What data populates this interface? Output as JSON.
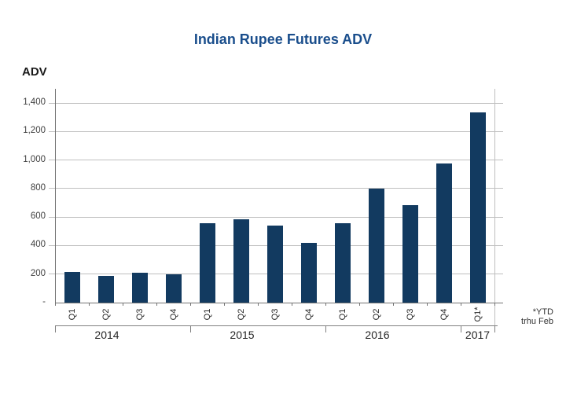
{
  "page": {
    "title": "Indian Rupee Futures ADV",
    "axis_title": "ADV",
    "footnote_line1": "*YTD",
    "footnote_line2": "trhu Feb"
  },
  "colors": {
    "bar": "#123a60",
    "title_text": "#1a4e8c",
    "gridline": "#bfbfbf",
    "axis_dark": "#737373",
    "axis_mid": "#808080",
    "label_text": "#262626"
  },
  "chart_data": {
    "type": "bar",
    "title": "Indian Rupee Futures ADV",
    "ylabel": "ADV",
    "xlabel": "",
    "ylim": [
      0,
      1500
    ],
    "yticks": [
      0,
      200,
      400,
      600,
      800,
      1000,
      1200,
      1400
    ],
    "ytick_labels": [
      "-",
      "200",
      "400",
      "600",
      "800",
      "1,000",
      "1,200",
      "1,400"
    ],
    "grid": true,
    "legend": false,
    "categories": [
      "Q1",
      "Q2",
      "Q3",
      "Q4",
      "Q1",
      "Q2",
      "Q3",
      "Q4",
      "Q1",
      "Q2",
      "Q3",
      "Q4",
      "Q1*"
    ],
    "values": [
      215,
      190,
      210,
      200,
      555,
      585,
      540,
      420,
      555,
      800,
      685,
      975,
      1335
    ],
    "year_groups": [
      {
        "label": "2014",
        "quarters": 4
      },
      {
        "label": "2015",
        "quarters": 4
      },
      {
        "label": "2016",
        "quarters": 4
      },
      {
        "label": "2017",
        "quarters": 1
      }
    ],
    "annotation": "*YTD trhu Feb"
  }
}
